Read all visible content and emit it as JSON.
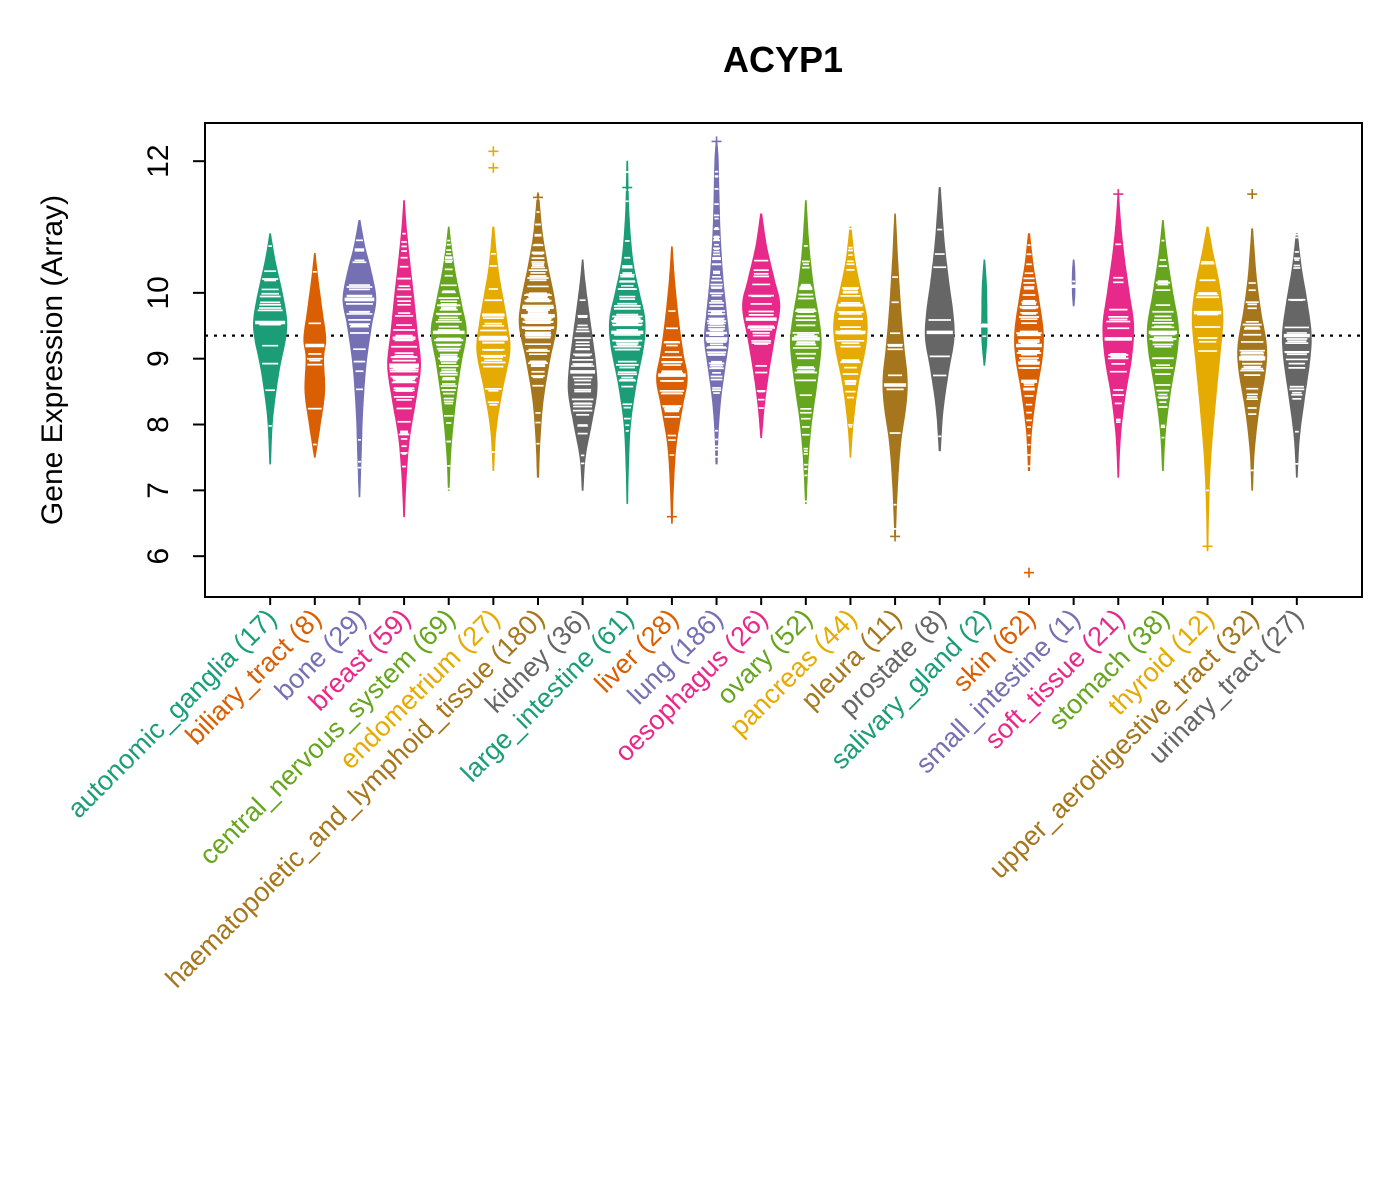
{
  "chart_data": {
    "type": "violin",
    "title": "ACYP1",
    "ylabel": "Gene Expression (Array)",
    "ylim": [
      5.4,
      12.6
    ],
    "yticks": [
      6,
      7,
      8,
      9,
      10,
      12
    ],
    "reference_line": 9.35,
    "grid": false,
    "legend": "none",
    "point_marker_color": "#ffffff",
    "palette": [
      "#1B9E77",
      "#D95F02",
      "#7570B3",
      "#E7298A",
      "#66A61E",
      "#E6AB02",
      "#A6761D",
      "#666666"
    ],
    "groups": [
      {
        "label": "autonomic_ganglia",
        "n": 17,
        "color": "#1B9E77",
        "median": 9.55,
        "outliers": [],
        "profile": [
          [
            7.4,
            0.02
          ],
          [
            8.1,
            0.12
          ],
          [
            8.8,
            0.4
          ],
          [
            9.3,
            0.7
          ],
          [
            9.6,
            0.75
          ],
          [
            10.0,
            0.55
          ],
          [
            10.5,
            0.22
          ],
          [
            10.9,
            0.02
          ]
        ]
      },
      {
        "label": "biliary_tract",
        "n": 8,
        "color": "#D95F02",
        "median": 9.2,
        "outliers": [],
        "profile": [
          [
            7.5,
            0.02
          ],
          [
            8.0,
            0.25
          ],
          [
            8.5,
            0.45
          ],
          [
            9.0,
            0.4
          ],
          [
            9.3,
            0.5
          ],
          [
            9.7,
            0.35
          ],
          [
            10.2,
            0.15
          ],
          [
            10.6,
            0.02
          ]
        ]
      },
      {
        "label": "bone",
        "n": 29,
        "color": "#7570B3",
        "median": 9.9,
        "outliers": [],
        "profile": [
          [
            6.9,
            0.02
          ],
          [
            7.5,
            0.08
          ],
          [
            8.2,
            0.15
          ],
          [
            8.9,
            0.3
          ],
          [
            9.5,
            0.55
          ],
          [
            9.9,
            0.75
          ],
          [
            10.3,
            0.55
          ],
          [
            10.7,
            0.25
          ],
          [
            11.1,
            0.03
          ]
        ]
      },
      {
        "label": "breast",
        "n": 59,
        "color": "#E7298A",
        "median": 8.9,
        "outliers": [],
        "profile": [
          [
            6.6,
            0.02
          ],
          [
            7.2,
            0.1
          ],
          [
            7.8,
            0.25
          ],
          [
            8.4,
            0.55
          ],
          [
            8.9,
            0.75
          ],
          [
            9.4,
            0.6
          ],
          [
            9.9,
            0.45
          ],
          [
            10.5,
            0.25
          ],
          [
            11.0,
            0.1
          ],
          [
            11.4,
            0.02
          ]
        ]
      },
      {
        "label": "central_nervous_system",
        "n": 69,
        "color": "#66A61E",
        "median": 9.4,
        "outliers": [],
        "profile": [
          [
            7.0,
            0.02
          ],
          [
            7.6,
            0.1
          ],
          [
            8.3,
            0.3
          ],
          [
            8.9,
            0.55
          ],
          [
            9.4,
            0.8
          ],
          [
            9.8,
            0.6
          ],
          [
            10.3,
            0.3
          ],
          [
            10.7,
            0.12
          ],
          [
            11.0,
            0.02
          ]
        ]
      },
      {
        "label": "endometrium",
        "n": 27,
        "color": "#E6AB02",
        "median": 9.3,
        "outliers": [
          11.9,
          12.15
        ],
        "profile": [
          [
            7.3,
            0.02
          ],
          [
            7.9,
            0.12
          ],
          [
            8.5,
            0.4
          ],
          [
            9.1,
            0.75
          ],
          [
            9.5,
            0.65
          ],
          [
            9.9,
            0.45
          ],
          [
            10.4,
            0.2
          ],
          [
            11.0,
            0.03
          ]
        ]
      },
      {
        "label": "haematopoietic_and_lymphoid_tissue",
        "n": 180,
        "color": "#A6761D",
        "median": 9.65,
        "outliers": [
          11.45
        ],
        "profile": [
          [
            7.2,
            0.03
          ],
          [
            7.8,
            0.1
          ],
          [
            8.4,
            0.25
          ],
          [
            9.0,
            0.55
          ],
          [
            9.5,
            0.85
          ],
          [
            9.9,
            0.75
          ],
          [
            10.4,
            0.45
          ],
          [
            10.9,
            0.2
          ],
          [
            11.5,
            0.03
          ]
        ]
      },
      {
        "label": "kidney",
        "n": 36,
        "color": "#666666",
        "median": 8.8,
        "outliers": [],
        "profile": [
          [
            7.0,
            0.02
          ],
          [
            7.5,
            0.12
          ],
          [
            8.0,
            0.4
          ],
          [
            8.5,
            0.65
          ],
          [
            8.9,
            0.6
          ],
          [
            9.3,
            0.45
          ],
          [
            9.8,
            0.25
          ],
          [
            10.2,
            0.1
          ],
          [
            10.5,
            0.02
          ]
        ]
      },
      {
        "label": "large_intestine",
        "n": 61,
        "color": "#1B9E77",
        "median": 9.4,
        "outliers": [
          11.6
        ],
        "profile": [
          [
            6.8,
            0.02
          ],
          [
            7.4,
            0.06
          ],
          [
            8.0,
            0.15
          ],
          [
            8.6,
            0.4
          ],
          [
            9.2,
            0.75
          ],
          [
            9.6,
            0.8
          ],
          [
            10.0,
            0.55
          ],
          [
            10.5,
            0.25
          ],
          [
            11.2,
            0.08
          ],
          [
            12.0,
            0.02
          ]
        ]
      },
      {
        "label": "liver",
        "n": 28,
        "color": "#D95F02",
        "median": 8.75,
        "outliers": [
          6.6
        ],
        "profile": [
          [
            6.5,
            0.02
          ],
          [
            7.1,
            0.08
          ],
          [
            7.7,
            0.2
          ],
          [
            8.3,
            0.5
          ],
          [
            8.7,
            0.7
          ],
          [
            9.1,
            0.5
          ],
          [
            9.6,
            0.3
          ],
          [
            10.2,
            0.12
          ],
          [
            10.7,
            0.02
          ]
        ]
      },
      {
        "label": "lung",
        "n": 186,
        "color": "#7570B3",
        "median": 9.3,
        "outliers": [
          12.3
        ],
        "profile": [
          [
            7.4,
            0.03
          ],
          [
            7.9,
            0.08
          ],
          [
            8.4,
            0.2
          ],
          [
            8.9,
            0.4
          ],
          [
            9.3,
            0.55
          ],
          [
            9.7,
            0.45
          ],
          [
            10.2,
            0.3
          ],
          [
            10.8,
            0.18
          ],
          [
            11.4,
            0.12
          ],
          [
            12.0,
            0.08
          ],
          [
            12.3,
            0.02
          ]
        ]
      },
      {
        "label": "oesophagus",
        "n": 26,
        "color": "#E7298A",
        "median": 9.6,
        "outliers": [],
        "profile": [
          [
            7.8,
            0.02
          ],
          [
            8.3,
            0.15
          ],
          [
            8.8,
            0.35
          ],
          [
            9.3,
            0.6
          ],
          [
            9.8,
            0.85
          ],
          [
            10.2,
            0.6
          ],
          [
            10.7,
            0.25
          ],
          [
            11.2,
            0.03
          ]
        ]
      },
      {
        "label": "ovary",
        "n": 52,
        "color": "#66A61E",
        "median": 9.3,
        "outliers": [],
        "profile": [
          [
            6.8,
            0.02
          ],
          [
            7.4,
            0.1
          ],
          [
            8.0,
            0.25
          ],
          [
            8.6,
            0.5
          ],
          [
            9.2,
            0.7
          ],
          [
            9.6,
            0.6
          ],
          [
            10.1,
            0.35
          ],
          [
            10.7,
            0.15
          ],
          [
            11.4,
            0.02
          ]
        ]
      },
      {
        "label": "pancreas",
        "n": 44,
        "color": "#E6AB02",
        "median": 9.4,
        "outliers": [],
        "profile": [
          [
            7.5,
            0.02
          ],
          [
            8.0,
            0.12
          ],
          [
            8.6,
            0.35
          ],
          [
            9.2,
            0.7
          ],
          [
            9.6,
            0.75
          ],
          [
            10.0,
            0.5
          ],
          [
            10.5,
            0.2
          ],
          [
            11.0,
            0.03
          ]
        ]
      },
      {
        "label": "pleura",
        "n": 11,
        "color": "#A6761D",
        "median": 8.6,
        "outliers": [
          6.3
        ],
        "profile": [
          [
            6.3,
            0.02
          ],
          [
            7.0,
            0.1
          ],
          [
            7.7,
            0.25
          ],
          [
            8.3,
            0.5
          ],
          [
            8.7,
            0.55
          ],
          [
            9.2,
            0.4
          ],
          [
            9.8,
            0.25
          ],
          [
            10.5,
            0.12
          ],
          [
            11.2,
            0.02
          ]
        ]
      },
      {
        "label": "prostate",
        "n": 8,
        "color": "#666666",
        "median": 9.4,
        "outliers": [],
        "profile": [
          [
            7.6,
            0.03
          ],
          [
            8.2,
            0.15
          ],
          [
            8.8,
            0.4
          ],
          [
            9.3,
            0.65
          ],
          [
            9.7,
            0.6
          ],
          [
            10.2,
            0.4
          ],
          [
            10.8,
            0.2
          ],
          [
            11.6,
            0.03
          ]
        ]
      },
      {
        "label": "salivary_gland",
        "n": 2,
        "color": "#1B9E77",
        "median": 9.5,
        "outliers": [],
        "profile": [
          [
            8.9,
            0.02
          ],
          [
            9.3,
            0.12
          ],
          [
            9.7,
            0.12
          ],
          [
            10.1,
            0.1
          ],
          [
            10.5,
            0.02
          ]
        ]
      },
      {
        "label": "skin",
        "n": 62,
        "color": "#D95F02",
        "median": 9.2,
        "outliers": [
          5.75
        ],
        "profile": [
          [
            7.3,
            0.03
          ],
          [
            7.9,
            0.12
          ],
          [
            8.5,
            0.35
          ],
          [
            9.0,
            0.6
          ],
          [
            9.4,
            0.65
          ],
          [
            9.9,
            0.45
          ],
          [
            10.4,
            0.2
          ],
          [
            10.9,
            0.03
          ]
        ]
      },
      {
        "label": "small_intestine",
        "n": 1,
        "color": "#7570B3",
        "median": 10.1,
        "outliers": [],
        "profile": [
          [
            9.8,
            0.02
          ],
          [
            10.0,
            0.06
          ],
          [
            10.3,
            0.06
          ],
          [
            10.5,
            0.02
          ]
        ]
      },
      {
        "label": "soft_tissue",
        "n": 21,
        "color": "#E7298A",
        "median": 9.3,
        "outliers": [
          11.5
        ],
        "profile": [
          [
            7.2,
            0.02
          ],
          [
            7.8,
            0.1
          ],
          [
            8.4,
            0.3
          ],
          [
            9.0,
            0.6
          ],
          [
            9.5,
            0.7
          ],
          [
            10.0,
            0.5
          ],
          [
            10.6,
            0.25
          ],
          [
            11.1,
            0.1
          ],
          [
            11.5,
            0.02
          ]
        ]
      },
      {
        "label": "stomach",
        "n": 38,
        "color": "#66A61E",
        "median": 9.4,
        "outliers": [],
        "profile": [
          [
            7.3,
            0.02
          ],
          [
            7.9,
            0.12
          ],
          [
            8.5,
            0.35
          ],
          [
            9.1,
            0.65
          ],
          [
            9.5,
            0.7
          ],
          [
            10.0,
            0.45
          ],
          [
            10.6,
            0.18
          ],
          [
            11.1,
            0.02
          ]
        ]
      },
      {
        "label": "thyroid",
        "n": 12,
        "color": "#E6AB02",
        "median": 9.7,
        "outliers": [
          6.15
        ],
        "profile": [
          [
            6.1,
            0.02
          ],
          [
            6.8,
            0.06
          ],
          [
            7.5,
            0.15
          ],
          [
            8.3,
            0.35
          ],
          [
            9.0,
            0.55
          ],
          [
            9.6,
            0.7
          ],
          [
            10.1,
            0.55
          ],
          [
            10.6,
            0.25
          ],
          [
            11.0,
            0.03
          ]
        ]
      },
      {
        "label": "upper_aerodigestive_tract",
        "n": 32,
        "color": "#A6761D",
        "median": 9.0,
        "outliers": [
          11.5
        ],
        "profile": [
          [
            7.0,
            0.02
          ],
          [
            7.6,
            0.1
          ],
          [
            8.2,
            0.3
          ],
          [
            8.8,
            0.6
          ],
          [
            9.2,
            0.65
          ],
          [
            9.7,
            0.4
          ],
          [
            10.2,
            0.2
          ],
          [
            10.7,
            0.08
          ],
          [
            11.0,
            0.02
          ]
        ]
      },
      {
        "label": "urinary_tract",
        "n": 27,
        "color": "#666666",
        "median": 9.35,
        "outliers": [],
        "profile": [
          [
            7.2,
            0.02
          ],
          [
            7.8,
            0.12
          ],
          [
            8.4,
            0.35
          ],
          [
            9.0,
            0.6
          ],
          [
            9.4,
            0.65
          ],
          [
            9.9,
            0.45
          ],
          [
            10.4,
            0.2
          ],
          [
            10.9,
            0.03
          ]
        ]
      }
    ]
  }
}
